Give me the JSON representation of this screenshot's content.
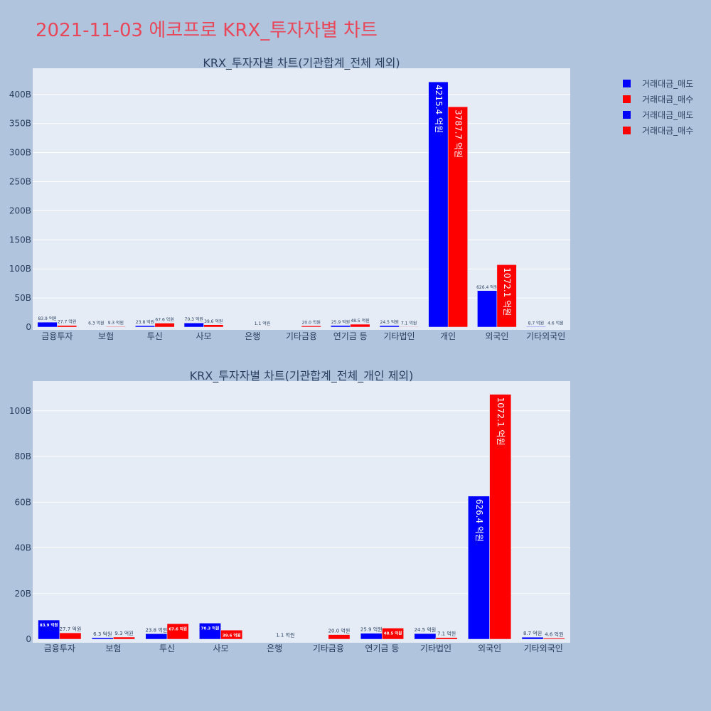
{
  "page": {
    "title": "2021-11-03 에코프로 KRX_투자자별 차트",
    "title_color": "#e8475a",
    "background": "#b0c4de",
    "plot_background": "#e5ecf6"
  },
  "legend": {
    "items": [
      {
        "label": "거래대금_매도",
        "color": "#0000ff"
      },
      {
        "label": "거래대금_매수",
        "color": "#ff0000"
      },
      {
        "label": "거래대금_매도",
        "color": "#0000ff"
      },
      {
        "label": "거래대금_매수",
        "color": "#ff0000"
      }
    ]
  },
  "chart_data": [
    {
      "type": "bar",
      "title": "KRX_투자자별 차트(기관합계_전체 제외)",
      "categories": [
        "금융투자",
        "보험",
        "투신",
        "사모",
        "은행",
        "기타금융",
        "연기금 등",
        "기타법인",
        "개인",
        "외국인",
        "기타외국인"
      ],
      "ylim": [
        0,
        445
      ],
      "yticks": [
        0,
        50,
        100,
        150,
        200,
        250,
        300,
        350,
        400
      ],
      "ytick_labels": [
        "0",
        "50B",
        "100B",
        "150B",
        "200B",
        "250B",
        "300B",
        "350B",
        "400B"
      ],
      "grid": true,
      "series": [
        {
          "name": "거래대금_매도",
          "color": "#0000ff",
          "values": [
            8.39,
            0.63,
            2.38,
            7.03,
            0,
            0,
            2.59,
            2.45,
            421.54,
            62.64,
            0.87
          ],
          "labels": [
            "83.9 억원",
            "6.3 억원",
            "23.8 억원",
            "70.3 억원",
            "",
            "",
            "25.9 억원",
            "24.5 억원",
            "4215.4 억원",
            "626.4 억원",
            "8.7 억원"
          ]
        },
        {
          "name": "거래대금_매수",
          "color": "#ff0000",
          "values": [
            2.77,
            0.93,
            6.76,
            3.96,
            0.11,
            2.0,
            4.85,
            0.71,
            378.77,
            107.21,
            0.46
          ],
          "labels": [
            "27.7 억원",
            "9.3 억원",
            "67.6 억원",
            "39.6 억원",
            "1.1 억원",
            "20.0 억원",
            "48.5 억원",
            "7.1 억원",
            "3787.7 억원",
            "1072.1 억원",
            "4.6 억원"
          ]
        }
      ]
    },
    {
      "type": "bar",
      "title": "KRX_투자자별 차트(기관합계_전체_개인 제외)",
      "categories": [
        "금융투자",
        "보험",
        "투신",
        "사모",
        "은행",
        "기타금융",
        "연기금 등",
        "기타법인",
        "외국인",
        "기타외국인"
      ],
      "ylim": [
        0,
        113
      ],
      "yticks": [
        0,
        20,
        40,
        60,
        80,
        100
      ],
      "ytick_labels": [
        "0",
        "20B",
        "40B",
        "60B",
        "80B",
        "100B"
      ],
      "grid": true,
      "series": [
        {
          "name": "거래대금_매도",
          "color": "#0000ff",
          "values": [
            8.39,
            0.63,
            2.38,
            7.03,
            0,
            0,
            2.59,
            2.45,
            62.64,
            0.87
          ],
          "labels": [
            "83.9 억원",
            "6.3 억원",
            "23.8 억원",
            "70.3 억원",
            "",
            "",
            "25.9 억원",
            "24.5 억원",
            "626.4 억원",
            "8.7 억원"
          ]
        },
        {
          "name": "거래대금_매수",
          "color": "#ff0000",
          "values": [
            2.77,
            0.93,
            6.76,
            3.96,
            0.11,
            2.0,
            4.85,
            0.71,
            107.21,
            0.46
          ],
          "labels": [
            "27.7 억원",
            "9.3 억원",
            "67.6 억원",
            "39.6 억원",
            "1.1 억원",
            "20.0 억원",
            "48.5 억원",
            "7.1 억원",
            "1072.1 억원",
            "4.6 억원"
          ]
        }
      ]
    }
  ]
}
